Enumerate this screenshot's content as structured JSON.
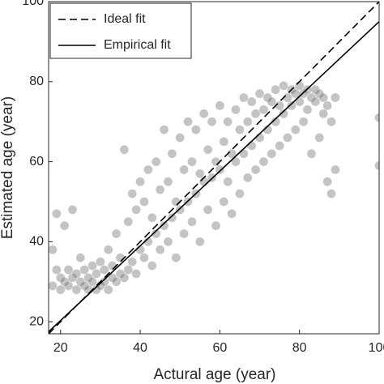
{
  "chart_data": {
    "type": "scatter",
    "xlabel": "Actural age (year)",
    "ylabel": "Estimated age (year)",
    "xlim": [
      17,
      100
    ],
    "ylim": [
      17,
      100
    ],
    "xticks": [
      20,
      40,
      60,
      80,
      100
    ],
    "yticks": [
      20,
      40,
      60,
      80,
      100
    ],
    "legend": "upper left",
    "series": [
      {
        "name": "Ideal fit",
        "mode": "line",
        "dash": true,
        "color": "#000000",
        "x": [
          17,
          100
        ],
        "values": [
          17,
          100
        ]
      },
      {
        "name": "Empirical fit",
        "mode": "line",
        "dash": false,
        "color": "#000000",
        "x": [
          17,
          100
        ],
        "values": [
          17.5,
          95
        ]
      },
      {
        "mode": "points",
        "color": "#555555",
        "x": [
          18,
          18,
          19,
          19,
          20,
          20,
          21,
          21,
          22,
          22,
          23,
          23,
          24,
          24,
          25,
          25,
          26,
          26,
          27,
          27,
          28,
          28,
          29,
          29,
          30,
          30,
          31,
          31,
          32,
          32,
          33,
          33,
          34,
          34,
          35,
          35,
          36,
          36,
          37,
          37,
          38,
          38,
          39,
          39,
          40,
          40,
          41,
          41,
          42,
          42,
          43,
          43,
          44,
          44,
          45,
          45,
          46,
          46,
          47,
          47,
          48,
          48,
          49,
          49,
          50,
          50,
          51,
          51,
          52,
          52,
          53,
          53,
          54,
          54,
          55,
          55,
          56,
          56,
          57,
          57,
          58,
          58,
          59,
          59,
          60,
          60,
          61,
          61,
          62,
          62,
          63,
          63,
          64,
          64,
          65,
          65,
          66,
          66,
          67,
          67,
          68,
          68,
          69,
          69,
          70,
          70,
          71,
          71,
          72,
          72,
          73,
          73,
          74,
          74,
          75,
          75,
          76,
          76,
          77,
          77,
          78,
          78,
          79,
          79,
          80,
          80,
          81,
          81,
          82,
          82,
          83,
          83,
          84,
          84,
          85,
          85,
          86,
          86,
          87,
          87,
          88,
          88,
          89,
          89,
          100,
          100
        ],
        "values": [
          29,
          38,
          33,
          47,
          28,
          31,
          30,
          44,
          29,
          33,
          31,
          48,
          28,
          32,
          30,
          36,
          29,
          33,
          28,
          31,
          30,
          34,
          28,
          32,
          29,
          35,
          30,
          33,
          28,
          38,
          31,
          34,
          30,
          42,
          32,
          36,
          31,
          63,
          33,
          45,
          35,
          52,
          32,
          48,
          38,
          55,
          36,
          50,
          40,
          58,
          34,
          46,
          42,
          60,
          38,
          53,
          44,
          68,
          40,
          55,
          46,
          62,
          36,
          50,
          48,
          66,
          42,
          58,
          50,
          70,
          45,
          60,
          52,
          68,
          40,
          57,
          55,
          72,
          48,
          63,
          56,
          70,
          44,
          60,
          58,
          74,
          50,
          65,
          55,
          70,
          47,
          62,
          60,
          73,
          52,
          68,
          62,
          76,
          56,
          70,
          64,
          75,
          58,
          72,
          66,
          77,
          60,
          73,
          68,
          76,
          62,
          75,
          70,
          78,
          64,
          74,
          72,
          79,
          66,
          76,
          74,
          78,
          68,
          77,
          75,
          79,
          70,
          77,
          73,
          78,
          62,
          76,
          75,
          78,
          66,
          77,
          72,
          76,
          55,
          74,
          52,
          70,
          58,
          76,
          59,
          71
        ]
      }
    ]
  }
}
